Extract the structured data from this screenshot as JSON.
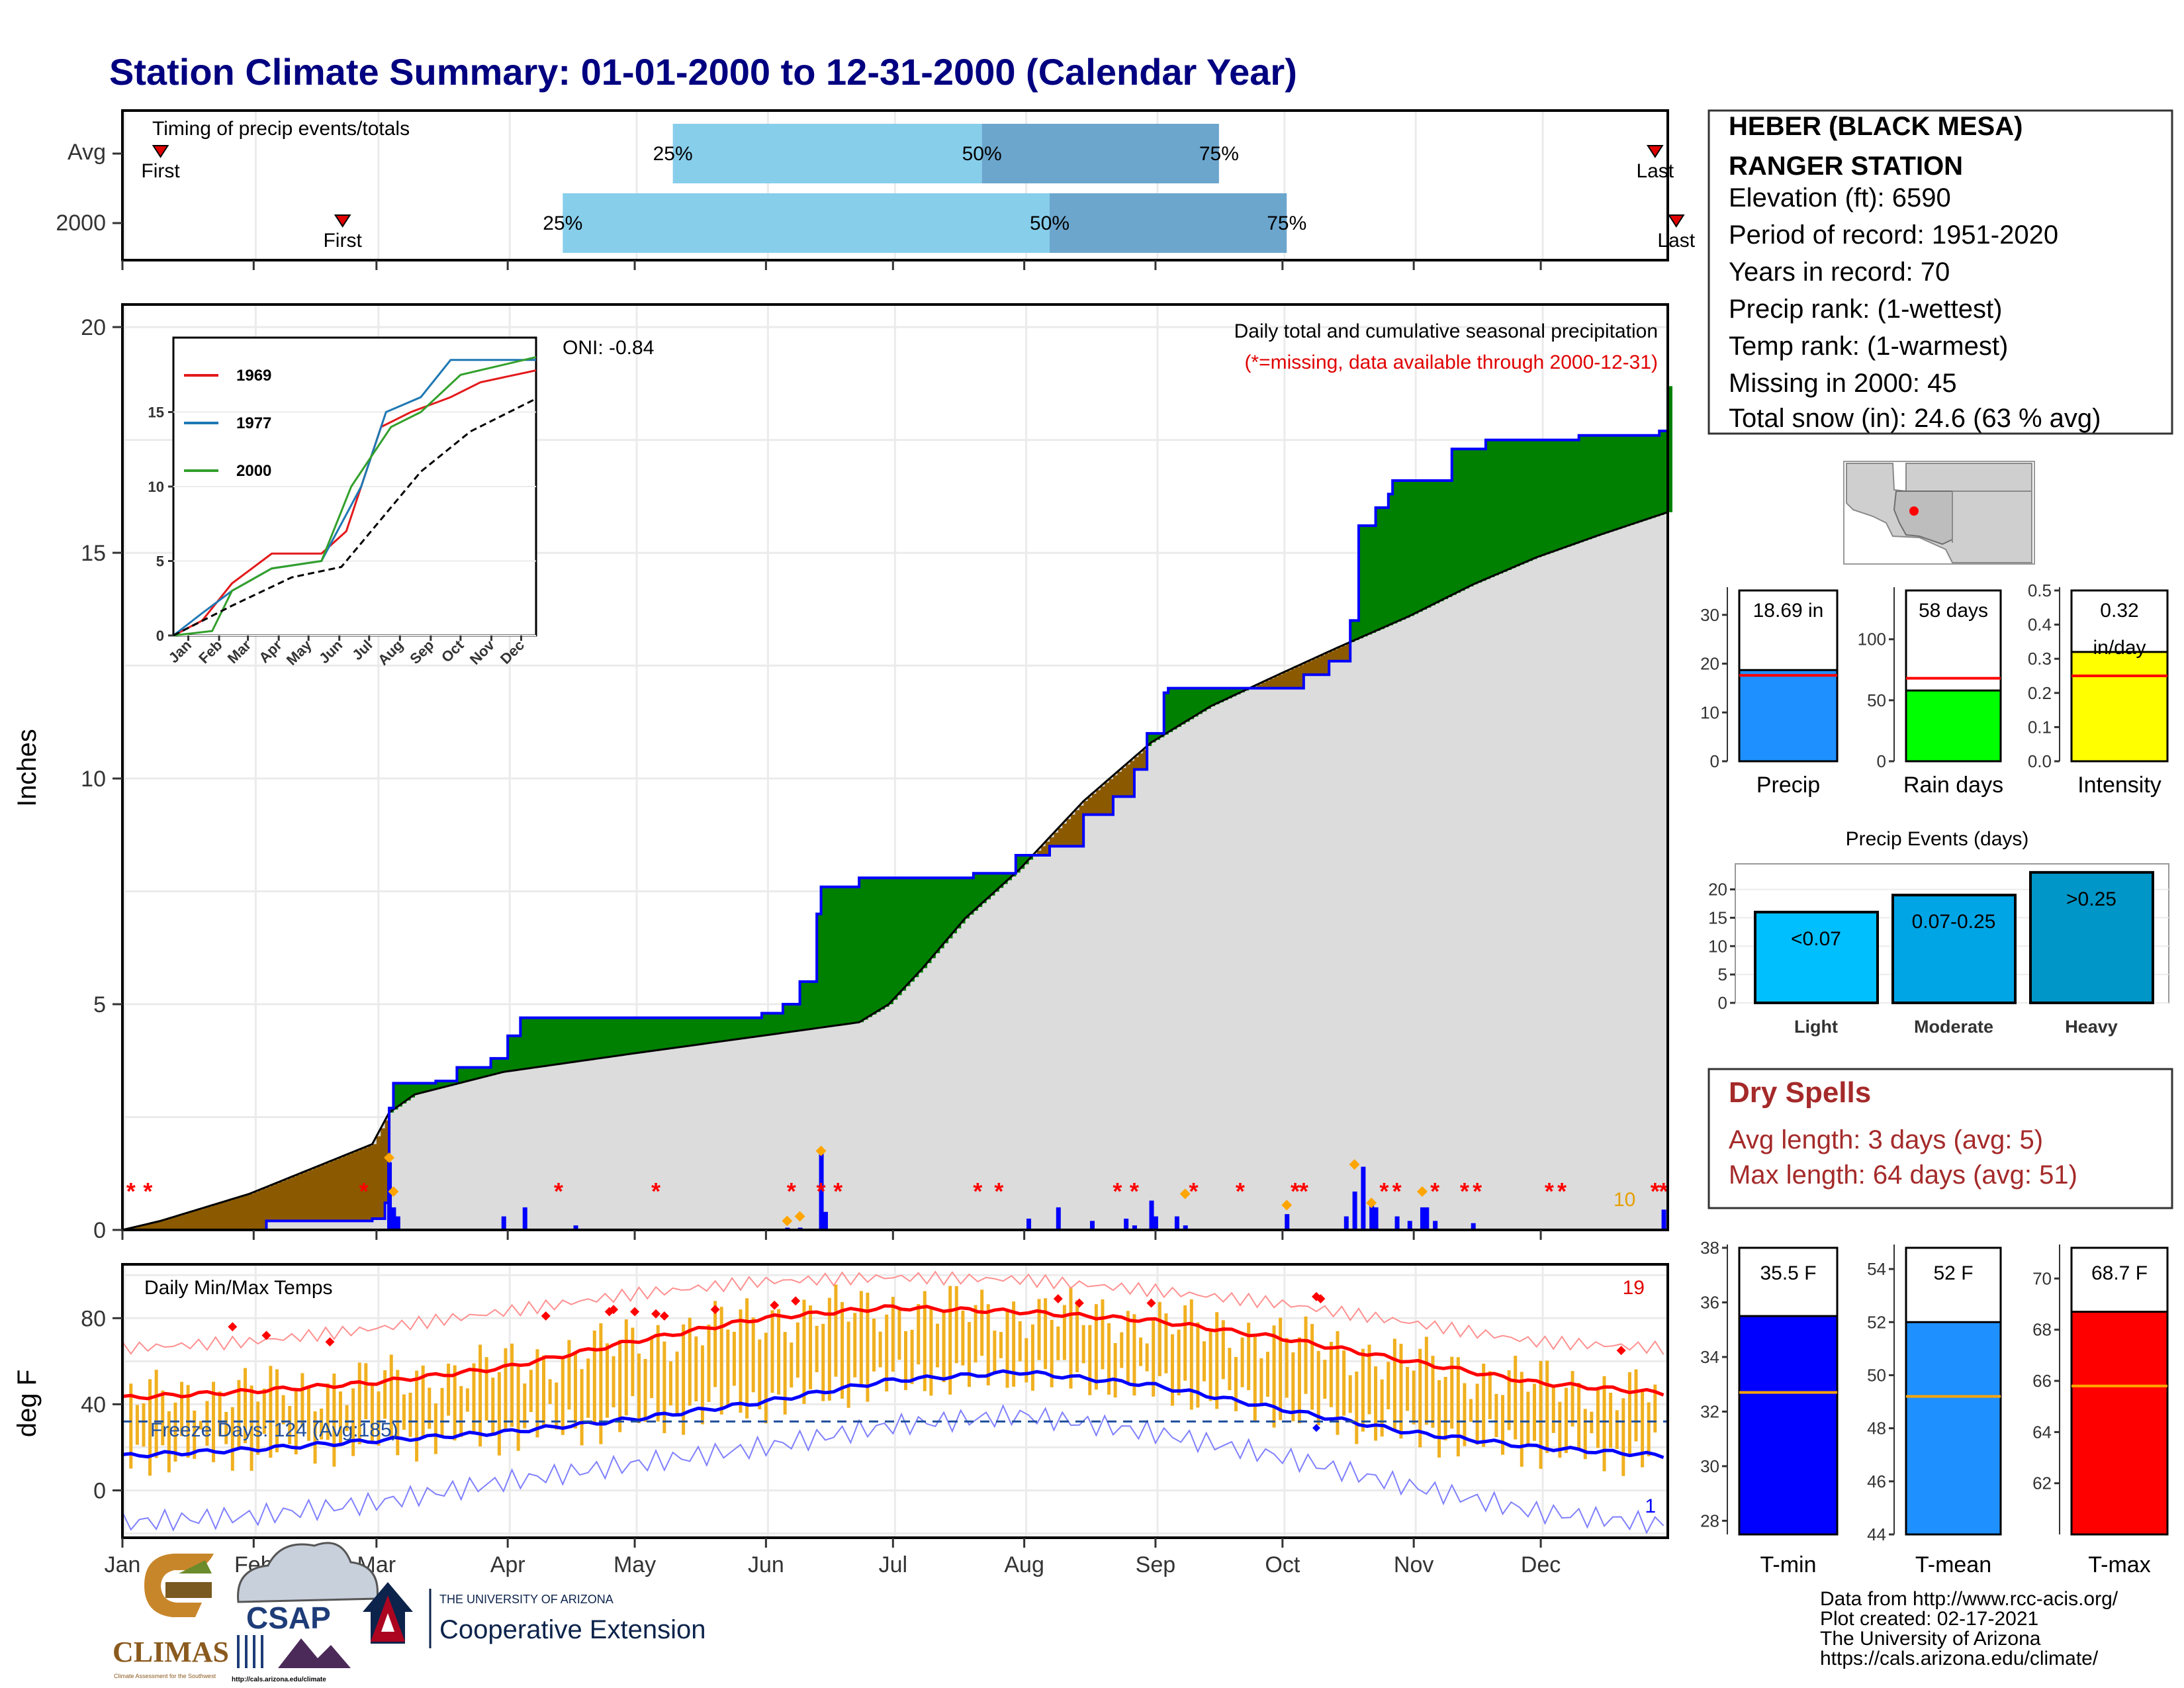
{
  "title": "Station Climate Summary: 01-01-2000 to 12-31-2000 (Calendar Year)",
  "timing_panel": {
    "heading": "Timing of precip events/totals",
    "rows": [
      {
        "label": "Avg",
        "first_day": 10,
        "q25_day": 131,
        "q50_day": 204,
        "q75_day": 260,
        "last_day": 363,
        "first_label": "First",
        "last_label": "Last",
        "p25": "25%",
        "p50": "50%",
        "p75": "75%"
      },
      {
        "label": "2000",
        "first_day": 53,
        "q25_day": 105,
        "q50_day": 220,
        "q75_day": 276,
        "last_day": 368,
        "first_label": "First",
        "last_label": "Last",
        "p25": "25%",
        "p50": "50%",
        "p75": "75%"
      }
    ]
  },
  "precip_panel": {
    "ylabel": "Inches",
    "note_line1": "Daily total and cumulative seasonal precipitation",
    "note_line2": "(*=missing, data available through 2000-12-31)",
    "oni": "ONI: -0.84",
    "orange_count": "10",
    "yticks": [
      "0",
      "5",
      "10",
      "15",
      "20"
    ]
  },
  "inset": {
    "legend": [
      {
        "name": "1969",
        "color": "#e31a1c"
      },
      {
        "name": "1977",
        "color": "#1f78b4"
      },
      {
        "name": "2000",
        "color": "#33a02c"
      }
    ],
    "yticks": [
      "0",
      "5",
      "10",
      "15"
    ],
    "xticks": [
      "Jan",
      "Feb",
      "Mar",
      "Apr",
      "May",
      "Jun",
      "Jul",
      "Aug",
      "Sep",
      "Oct",
      "Nov",
      "Dec"
    ]
  },
  "temp_panel": {
    "ylabel": "deg F",
    "heading": "Daily Min/Max Temps",
    "freeze_label": "Freeze Days: 124 (Avg:185)",
    "count_top": "19",
    "count_bottom": "1",
    "yticks": [
      "0",
      "40",
      "80"
    ]
  },
  "months": [
    "Jan",
    "Feb",
    "Mar",
    "Apr",
    "May",
    "Jun",
    "Jul",
    "Aug",
    "Sep",
    "Oct",
    "Nov",
    "Dec"
  ],
  "station": {
    "name_line1": "HEBER (BLACK MESA)",
    "name_line2": "RANGER STATION",
    "elevation": "Elevation (ft): 6590",
    "period": "Period of record: 1951-2020",
    "years": "Years in record: 70",
    "precip_rank": "Precip rank:  (1-wettest)",
    "temp_rank": "Temp rank:  (1-warmest)",
    "missing": "Missing in 2000: 45",
    "snow": "Total snow (in): 24.6 (63 % avg)"
  },
  "summary_bars": [
    {
      "label": "Precip",
      "value_text": "18.69 in",
      "value": 18.69,
      "avg": 17.6,
      "max": 35,
      "ticks": [
        "0",
        "10",
        "20",
        "30"
      ],
      "color": "#1e90ff"
    },
    {
      "label": "Rain days",
      "value_text": "58 days",
      "value": 58,
      "avg": 68,
      "max": 140,
      "ticks": [
        "0",
        "50",
        "100"
      ],
      "color": "#00ff00"
    },
    {
      "label": "Intensity",
      "value_text": "0.32",
      "value_text2": "in/day",
      "value": 0.32,
      "avg": 0.25,
      "max": 0.5,
      "ticks": [
        "0.0",
        "0.1",
        "0.2",
        "0.3",
        "0.4",
        "0.5"
      ],
      "color": "#ffff00"
    }
  ],
  "events": {
    "title": "Precip Events (days)",
    "yticks": [
      "0",
      "5",
      "10",
      "15",
      "20"
    ],
    "bars": [
      {
        "label": "Light",
        "range": "<0.07",
        "value": 16,
        "color": "#00bfff"
      },
      {
        "label": "Moderate",
        "range": "0.07-0.25",
        "value": 19,
        "color": "#00a5e6"
      },
      {
        "label": "Heavy",
        "range": ">0.25",
        "value": 23,
        "color": "#0096c8"
      }
    ]
  },
  "dry_spells": {
    "title": "Dry Spells",
    "avg": "Avg length: 3 days (avg: 5)",
    "max": "Max length: 64 days (avg: 51)"
  },
  "temp_bars": [
    {
      "label": "T-min",
      "value_text": "35.5 F",
      "value": 35.5,
      "avg": 32.7,
      "min": 27.5,
      "max": 38,
      "ticks": [
        "28",
        "30",
        "32",
        "34",
        "36",
        "38"
      ],
      "color": "#0000ff"
    },
    {
      "label": "T-mean",
      "value_text": "52 F",
      "value": 52,
      "avg": 49.2,
      "min": 44,
      "max": 54.8,
      "ticks": [
        "44",
        "46",
        "48",
        "50",
        "52",
        "54"
      ],
      "color": "#1e90ff"
    },
    {
      "label": "T-max",
      "value_text": "68.7 F",
      "value": 68.7,
      "avg": 65.8,
      "min": 60,
      "max": 71.2,
      "ticks": [
        "62",
        "64",
        "66",
        "68",
        "70"
      ],
      "color": "#ff0000"
    }
  ],
  "logos": {
    "climas": "CLIMAS",
    "climas_sub": "Climate Assessment for the Southwest",
    "csap": "CSAP",
    "csap_url": "http://cals.arizona.edu/climate",
    "ua_line1": "THE UNIVERSITY OF ARIZONA",
    "ua_line2": "Cooperative Extension"
  },
  "credits": {
    "line1": "Data from http://www.rcc-acis.org/",
    "line2": "Plot created: 02-17-2021",
    "line3": "The University of Arizona",
    "line4": "https://cals.arizona.edu/climate/"
  },
  "chart_data": [
    {
      "type": "area",
      "name": "cumulative_precip",
      "x_unit": "day of year 2000",
      "y_unit": "inches",
      "ylim": [
        0,
        20.5
      ],
      "series": [
        {
          "name": "2000",
          "points": [
            [
              1,
              0
            ],
            [
              31,
              0
            ],
            [
              35,
              0.2
            ],
            [
              60,
              0.25
            ],
            [
              63,
              0.6
            ],
            [
              64,
              2.7
            ],
            [
              65,
              3.25
            ],
            [
              75,
              3.3
            ],
            [
              80,
              3.6
            ],
            [
              88,
              3.8
            ],
            [
              92,
              4.3
            ],
            [
              95,
              4.7
            ],
            [
              145,
              4.7
            ],
            [
              152,
              4.8
            ],
            [
              157,
              5.0
            ],
            [
              161,
              5.5
            ],
            [
              165,
              7.0
            ],
            [
              166,
              7.6
            ],
            [
              175,
              7.8
            ],
            [
              202,
              7.9
            ],
            [
              212,
              8.3
            ],
            [
              220,
              8.5
            ],
            [
              228,
              9.2
            ],
            [
              235,
              9.6
            ],
            [
              240,
              10.2
            ],
            [
              243,
              11.0
            ],
            [
              247,
              11.9
            ],
            [
              248,
              12.0
            ],
            [
              275,
              12.0
            ],
            [
              280,
              12.3
            ],
            [
              286,
              12.6
            ],
            [
              291,
              13.5
            ],
            [
              293,
              15.6
            ],
            [
              297,
              16.0
            ],
            [
              300,
              16.3
            ],
            [
              301,
              16.6
            ],
            [
              315,
              17.3
            ],
            [
              323,
              17.5
            ],
            [
              345,
              17.6
            ],
            [
              364,
              17.7
            ],
            [
              366,
              18.69
            ]
          ]
        },
        {
          "name": "Avg",
          "points": [
            [
              1,
              0
            ],
            [
              10,
              0.2
            ],
            [
              31,
              0.8
            ],
            [
              60,
              1.9
            ],
            [
              64,
              2.6
            ],
            [
              70,
              3.0
            ],
            [
              91,
              3.5
            ],
            [
              121,
              3.9
            ],
            [
              152,
              4.3
            ],
            [
              175,
              4.6
            ],
            [
              182,
              5.0
            ],
            [
              190,
              5.8
            ],
            [
              200,
              6.9
            ],
            [
              213,
              8.0
            ],
            [
              228,
              9.5
            ],
            [
              244,
              10.8
            ],
            [
              258,
              11.6
            ],
            [
              274,
              12.3
            ],
            [
              288,
              12.9
            ],
            [
              305,
              13.6
            ],
            [
              320,
              14.3
            ],
            [
              335,
              14.9
            ],
            [
              350,
              15.4
            ],
            [
              366,
              15.9
            ]
          ]
        }
      ],
      "daily_totals": [
        [
          64,
          1.5
        ],
        [
          65,
          0.5
        ],
        [
          66,
          0.3
        ],
        [
          91,
          0.3
        ],
        [
          96,
          0.5
        ],
        [
          108,
          0.1
        ],
        [
          158,
          0.05
        ],
        [
          161,
          0.05
        ],
        [
          166,
          1.7
        ],
        [
          167,
          0.4
        ],
        [
          215,
          0.25
        ],
        [
          222,
          0.5
        ],
        [
          230,
          0.2
        ],
        [
          238,
          0.25
        ],
        [
          240,
          0.1
        ],
        [
          244,
          0.65
        ],
        [
          245,
          0.3
        ],
        [
          250,
          0.3
        ],
        [
          252,
          0.1
        ],
        [
          276,
          0.35
        ],
        [
          290,
          0.3
        ],
        [
          292,
          0.85
        ],
        [
          294,
          1.4
        ],
        [
          296,
          0.55
        ],
        [
          297,
          0.5
        ],
        [
          302,
          0.3
        ],
        [
          305,
          0.2
        ],
        [
          308,
          0.5
        ],
        [
          309,
          0.5
        ],
        [
          311,
          0.2
        ],
        [
          320,
          0.15
        ],
        [
          365,
          0.45
        ]
      ]
    },
    {
      "type": "line",
      "name": "inset_cumulative",
      "ylim": [
        0,
        20
      ],
      "series": [
        {
          "name": "1969",
          "points": [
            [
              1,
              0
            ],
            [
              30,
              1
            ],
            [
              60,
              3.5
            ],
            [
              100,
              5.5
            ],
            [
              150,
              5.5
            ],
            [
              175,
              7
            ],
            [
              210,
              14
            ],
            [
              240,
              15
            ],
            [
              280,
              16
            ],
            [
              310,
              17
            ],
            [
              366,
              17.8
            ]
          ]
        },
        {
          "name": "1977",
          "points": [
            [
              1,
              0
            ],
            [
              30,
              1.5
            ],
            [
              60,
              3
            ],
            [
              100,
              4.5
            ],
            [
              150,
              5
            ],
            [
              190,
              10
            ],
            [
              215,
              15
            ],
            [
              250,
              16
            ],
            [
              280,
              18.5
            ],
            [
              366,
              18.5
            ]
          ]
        },
        {
          "name": "2000",
          "points": [
            [
              1,
              0
            ],
            [
              40,
              0.3
            ],
            [
              60,
              3
            ],
            [
              100,
              4.5
            ],
            [
              150,
              5
            ],
            [
              180,
              10
            ],
            [
              220,
              14
            ],
            [
              250,
              15
            ],
            [
              290,
              17.5
            ],
            [
              366,
              18.69
            ]
          ]
        },
        {
          "name": "Avg",
          "points": [
            [
              1,
              0
            ],
            [
              60,
              2
            ],
            [
              120,
              3.9
            ],
            [
              170,
              4.6
            ],
            [
              200,
              7
            ],
            [
              250,
              11
            ],
            [
              300,
              13.7
            ],
            [
              366,
              15.9
            ]
          ]
        }
      ]
    },
    {
      "type": "line",
      "name": "daily_temps",
      "ylim": [
        -22,
        105
      ],
      "series": [
        {
          "name": "avg_max",
          "points": [
            [
              1,
              43
            ],
            [
              31,
              46
            ],
            [
              60,
              50
            ],
            [
              91,
              57
            ],
            [
              121,
              69
            ],
            [
              152,
              80
            ],
            [
              182,
              85
            ],
            [
              213,
              83
            ],
            [
              244,
              79
            ],
            [
              274,
              71
            ],
            [
              305,
              60
            ],
            [
              335,
              50
            ],
            [
              366,
              45
            ]
          ]
        },
        {
          "name": "avg_min",
          "points": [
            [
              1,
              16
            ],
            [
              31,
              19
            ],
            [
              60,
              23
            ],
            [
              91,
              27
            ],
            [
              121,
              33
            ],
            [
              152,
              41
            ],
            [
              182,
              51
            ],
            [
              213,
              55
            ],
            [
              244,
              49
            ],
            [
              274,
              38
            ],
            [
              305,
              27
            ],
            [
              335,
              20
            ],
            [
              366,
              16
            ]
          ]
        },
        {
          "name": "record_high",
          "points": [
            [
              1,
              66
            ],
            [
              31,
              69
            ],
            [
              60,
              75
            ],
            [
              91,
              83
            ],
            [
              121,
              91
            ],
            [
              152,
              97
            ],
            [
              182,
              99
            ],
            [
              213,
              98
            ],
            [
              244,
              93
            ],
            [
              274,
              87
            ],
            [
              305,
              78
            ],
            [
              335,
              69
            ],
            [
              366,
              66
            ]
          ]
        },
        {
          "name": "record_low",
          "points": [
            [
              1,
              -15
            ],
            [
              31,
              -12
            ],
            [
              60,
              -6
            ],
            [
              91,
              4
            ],
            [
              121,
              12
            ],
            [
              152,
              20
            ],
            [
              182,
              30
            ],
            [
              213,
              35
            ],
            [
              244,
              27
            ],
            [
              274,
              16
            ],
            [
              305,
              2
            ],
            [
              335,
              -10
            ],
            [
              366,
              -16
            ]
          ]
        }
      ],
      "freeze_line": 32
    }
  ]
}
